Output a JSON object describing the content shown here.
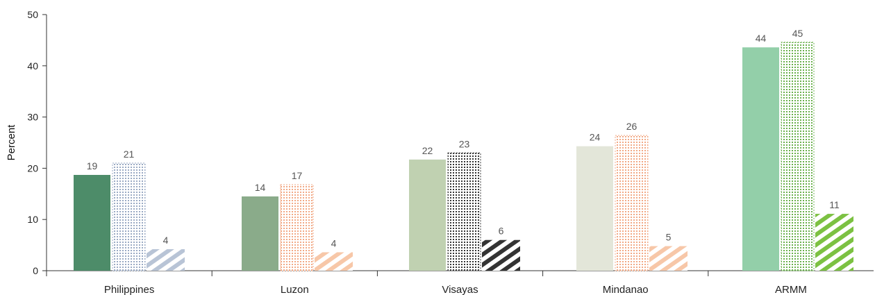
{
  "chart_data": {
    "type": "bar",
    "title": "",
    "xlabel": "",
    "ylabel": "Percent",
    "ylim": [
      0,
      50
    ],
    "yticks": [
      0,
      10,
      20,
      30,
      40,
      50
    ],
    "grid": false,
    "categories": [
      "Philippines",
      "Luzon",
      "Visayas",
      "Mindanao",
      "ARMM"
    ],
    "series": [
      {
        "values": [
          19,
          14,
          22,
          24,
          44
        ],
        "plotted": [
          18.7,
          14.5,
          21.7,
          24.3,
          43.6
        ]
      },
      {
        "values": [
          21,
          17,
          23,
          26,
          45
        ],
        "plotted": [
          21.0,
          16.8,
          23.0,
          26.4,
          44.6
        ]
      },
      {
        "values": [
          4,
          4,
          6,
          5,
          11
        ],
        "plotted": [
          4.2,
          3.6,
          6.0,
          4.8,
          11.1
        ]
      }
    ],
    "colors": {
      "Philippines": [
        "#4d8c69",
        "#9aaac4",
        "#b8c4d6"
      ],
      "Luzon": [
        "#8aab8a",
        "#f2a985",
        "#f7c7a8"
      ],
      "Visayas": [
        "#c0d1b1",
        "#333333",
        "#333333"
      ],
      "Mindanao": [
        "#e3e6d9",
        "#f2a985",
        "#f7c7a8"
      ],
      "ARMM": [
        "#93cfa9",
        "#6ab04c",
        "#7cc142"
      ]
    }
  }
}
